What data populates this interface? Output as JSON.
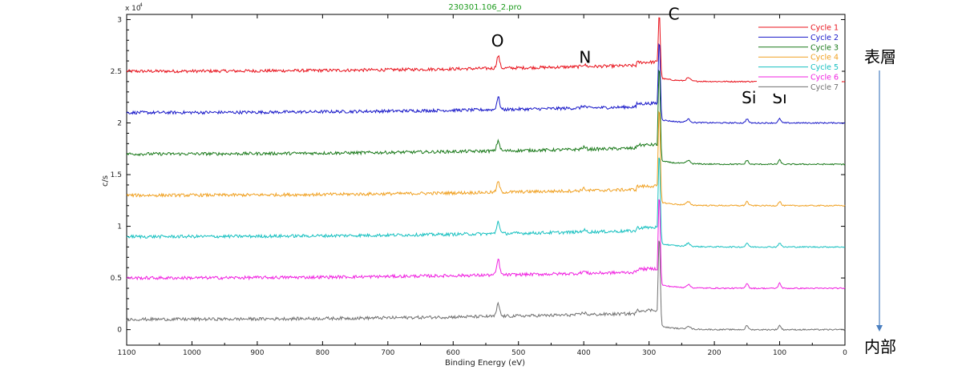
{
  "chart_data": {
    "type": "line",
    "title": "230301.106_2.pro",
    "xlabel": "Binding Energy (eV)",
    "ylabel": "c/s",
    "y_multiplier": "x 10",
    "y_multiplier_exp": "4",
    "xlim": [
      1100,
      0
    ],
    "ylim": [
      -0.15,
      3.05
    ],
    "x_reversed": true,
    "x_ticks": [
      1100,
      1000,
      900,
      800,
      700,
      600,
      500,
      400,
      300,
      200,
      100,
      0
    ],
    "y_ticks": [
      0,
      0.5,
      1,
      1.5,
      2,
      2.5,
      3
    ],
    "y_tick_labels": [
      "0",
      "0.5",
      "1",
      "1.5",
      "2",
      "2.5",
      "3"
    ],
    "grid": false,
    "legend_position": "top-right",
    "series": [
      {
        "name": "Cycle 1",
        "color": "#e8101a",
        "baseline": 2.5,
        "slope": 0.1,
        "low_level": 2.4,
        "c_peak": 3.05,
        "o_peak": 0.12,
        "si_peak": 0.0
      },
      {
        "name": "Cycle 2",
        "color": "#1616c8",
        "baseline": 2.1,
        "slope": 0.1,
        "low_level": 2.0,
        "c_peak": 2.8,
        "o_peak": 0.12,
        "si_peak": 0.04
      },
      {
        "name": "Cycle 3",
        "color": "#187818",
        "baseline": 1.7,
        "slope": 0.1,
        "low_level": 1.6,
        "c_peak": 2.55,
        "o_peak": 0.1,
        "si_peak": 0.04
      },
      {
        "name": "Cycle 4",
        "color": "#f0a020",
        "baseline": 1.3,
        "slope": 0.1,
        "low_level": 1.2,
        "c_peak": 2.15,
        "o_peak": 0.1,
        "si_peak": 0.04
      },
      {
        "name": "Cycle 5",
        "color": "#16c0c0",
        "baseline": 0.9,
        "slope": 0.1,
        "low_level": 0.8,
        "c_peak": 1.7,
        "o_peak": 0.12,
        "si_peak": 0.04
      },
      {
        "name": "Cycle 6",
        "color": "#f020e0",
        "baseline": 0.5,
        "slope": 0.1,
        "low_level": 0.4,
        "c_peak": 1.3,
        "o_peak": 0.15,
        "si_peak": 0.05
      },
      {
        "name": "Cycle 7",
        "color": "#707070",
        "baseline": 0.1,
        "slope": 0.1,
        "low_level": 0.0,
        "c_peak": 0.9,
        "o_peak": 0.12,
        "si_peak": 0.04
      }
    ],
    "annotations": [
      {
        "text": "O",
        "x": 532,
        "y": 2.74
      },
      {
        "text": "N",
        "x": 398,
        "y": 2.58
      },
      {
        "text": "C",
        "x": 262,
        "y": 3.0
      },
      {
        "text": "Si",
        "x": 147,
        "y": 2.19
      },
      {
        "text": "Si",
        "x": 100,
        "y": 2.19
      }
    ],
    "side_labels": {
      "top": "表層",
      "bottom": "内部"
    }
  }
}
